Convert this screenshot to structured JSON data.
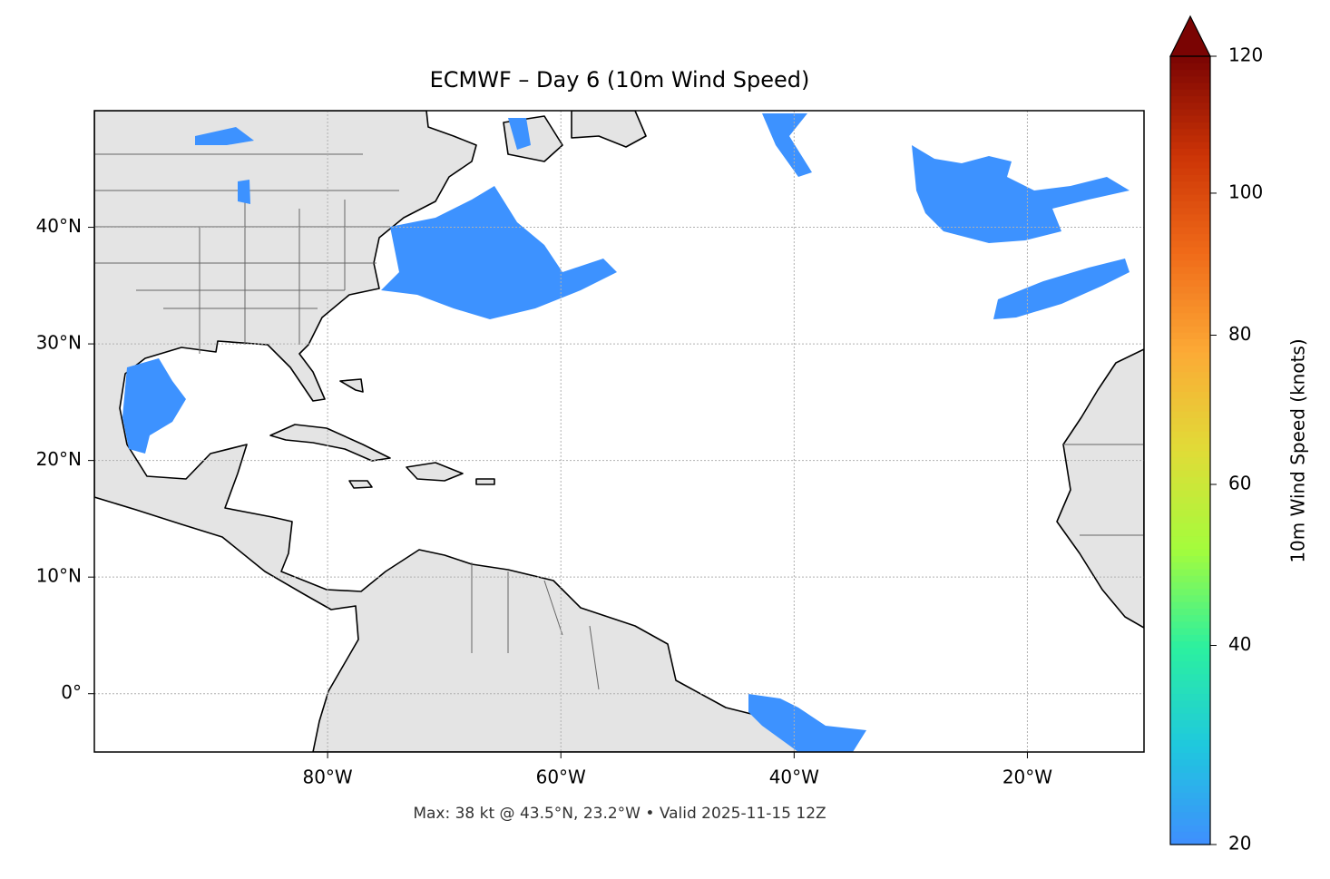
{
  "chart_data": {
    "type": "map",
    "title": "ECMWF – Day 6 (10m Wind Speed)",
    "xlim": [
      -100,
      -10
    ],
    "ylim": [
      -5,
      50
    ],
    "xticks": [
      {
        "value": -80,
        "label": "80°W"
      },
      {
        "value": -60,
        "label": "60°W"
      },
      {
        "value": -40,
        "label": "40°W"
      },
      {
        "value": -20,
        "label": "20°W"
      }
    ],
    "yticks": [
      {
        "value": 0,
        "label": "0°"
      },
      {
        "value": 10,
        "label": "10°N"
      },
      {
        "value": 20,
        "label": "20°N"
      },
      {
        "value": 30,
        "label": "30°N"
      },
      {
        "value": 40,
        "label": "40°N"
      }
    ],
    "grid": true,
    "annotation": "Max: 38 kt @ 43.5°N, 23.2°W • Valid 2025-11-15 12Z",
    "colorbar": {
      "label": "10m Wind Speed (knots)",
      "lim": [
        20,
        120
      ],
      "ticks": [
        20,
        40,
        60,
        80,
        100,
        120
      ],
      "colormap": [
        "#3f8efe",
        "#1fc8de",
        "#2bf0a0",
        "#a4fc3c",
        "#e0dc37",
        "#fcaa36",
        "#f06b19",
        "#cc3406",
        "#7a0403"
      ]
    }
  }
}
